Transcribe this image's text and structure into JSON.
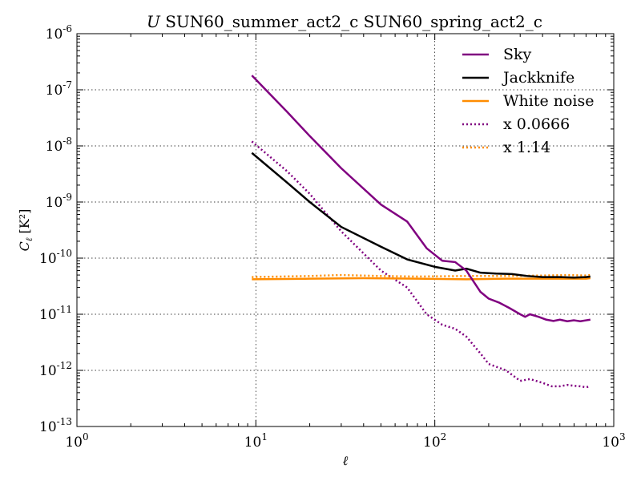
{
  "chart_data": {
    "type": "line",
    "title_italic_prefix": "U",
    "title": "SUN60_summer_act2_c SUN60_spring_act2_c",
    "xlabel": "ℓ",
    "ylabel_main": "C",
    "ylabel_sub": "ℓ",
    "ylabel_unit": "[K²]",
    "x_scale": "log",
    "y_scale": "log",
    "xlim": [
      1,
      1000
    ],
    "ylim": [
      1e-13,
      1e-06
    ],
    "x_ticks": [
      {
        "value": 1,
        "base": "10",
        "exp": "0"
      },
      {
        "value": 10,
        "base": "10",
        "exp": "1"
      },
      {
        "value": 100,
        "base": "10",
        "exp": "2"
      },
      {
        "value": 1000,
        "base": "10",
        "exp": "3"
      }
    ],
    "y_ticks": [
      {
        "value": 1e-13,
        "base": "10",
        "exp": "-13"
      },
      {
        "value": 1e-12,
        "base": "10",
        "exp": "-12"
      },
      {
        "value": 1e-11,
        "base": "10",
        "exp": "-11"
      },
      {
        "value": 1e-10,
        "base": "10",
        "exp": "-10"
      },
      {
        "value": 1e-09,
        "base": "10",
        "exp": "-9"
      },
      {
        "value": 1e-08,
        "base": "10",
        "exp": "-8"
      },
      {
        "value": 1e-07,
        "base": "10",
        "exp": "-7"
      },
      {
        "value": 1e-06,
        "base": "10",
        "exp": "-6"
      }
    ],
    "grid": true,
    "legend_position": "top-right",
    "series": [
      {
        "name": "Sky",
        "color": "#800080",
        "style": "solid",
        "points": [
          [
            9.5,
            1.8e-07
          ],
          [
            15,
            4e-08
          ],
          [
            20,
            1.5e-08
          ],
          [
            30,
            4e-09
          ],
          [
            50,
            9e-10
          ],
          [
            70,
            4.5e-10
          ],
          [
            90,
            1.5e-10
          ],
          [
            110,
            9e-11
          ],
          [
            130,
            8.5e-11
          ],
          [
            150,
            6e-11
          ],
          [
            180,
            2.5e-11
          ],
          [
            200,
            1.9e-11
          ],
          [
            230,
            1.6e-11
          ],
          [
            260,
            1.3e-11
          ],
          [
            300,
            1e-11
          ],
          [
            320,
            9e-12
          ],
          [
            340,
            1e-11
          ],
          [
            380,
            9e-12
          ],
          [
            420,
            8e-12
          ],
          [
            460,
            7.6e-12
          ],
          [
            500,
            8e-12
          ],
          [
            550,
            7.5e-12
          ],
          [
            600,
            7.8e-12
          ],
          [
            650,
            7.5e-12
          ],
          [
            700,
            7.8e-12
          ],
          [
            740,
            8e-12
          ]
        ]
      },
      {
        "name": "Jackknife",
        "color": "#000000",
        "style": "solid",
        "points": [
          [
            9.5,
            7.5e-09
          ],
          [
            15,
            2.2e-09
          ],
          [
            20,
            1e-09
          ],
          [
            30,
            3.6e-10
          ],
          [
            50,
            1.6e-10
          ],
          [
            70,
            9.5e-11
          ],
          [
            100,
            7e-11
          ],
          [
            130,
            6e-11
          ],
          [
            150,
            6.5e-11
          ],
          [
            180,
            5.5e-11
          ],
          [
            220,
            5.3e-11
          ],
          [
            270,
            5.2e-11
          ],
          [
            330,
            4.8e-11
          ],
          [
            400,
            4.6e-11
          ],
          [
            500,
            4.6e-11
          ],
          [
            600,
            4.5e-11
          ],
          [
            700,
            4.6e-11
          ],
          [
            740,
            4.7e-11
          ]
        ]
      },
      {
        "name": "White noise",
        "color": "#ff8c00",
        "style": "solid",
        "points": [
          [
            9.5,
            4.2e-11
          ],
          [
            20,
            4.3e-11
          ],
          [
            40,
            4.4e-11
          ],
          [
            80,
            4.3e-11
          ],
          [
            150,
            4.2e-11
          ],
          [
            250,
            4.3e-11
          ],
          [
            400,
            4.3e-11
          ],
          [
            550,
            4.3e-11
          ],
          [
            700,
            4.3e-11
          ],
          [
            740,
            4.4e-11
          ]
        ]
      },
      {
        "name": "x 0.0666",
        "color": "#800080",
        "style": "dotted",
        "points": [
          [
            9.5,
            1.2e-08
          ],
          [
            15,
            3.5e-09
          ],
          [
            20,
            1.4e-09
          ],
          [
            30,
            3e-10
          ],
          [
            50,
            6e-11
          ],
          [
            70,
            3e-11
          ],
          [
            90,
            1e-11
          ],
          [
            110,
            6.5e-12
          ],
          [
            130,
            5.5e-12
          ],
          [
            150,
            4e-12
          ],
          [
            180,
            2e-12
          ],
          [
            200,
            1.3e-12
          ],
          [
            250,
            1e-12
          ],
          [
            300,
            6.5e-13
          ],
          [
            340,
            7e-13
          ],
          [
            400,
            6e-13
          ],
          [
            450,
            5.2e-13
          ],
          [
            500,
            5.2e-13
          ],
          [
            550,
            5.5e-13
          ],
          [
            600,
            5.3e-13
          ],
          [
            650,
            5.2e-13
          ],
          [
            700,
            5e-13
          ],
          [
            740,
            5.2e-13
          ]
        ]
      },
      {
        "name": "x 1.14",
        "color": "#ff8c00",
        "style": "dotted",
        "points": [
          [
            9.5,
            4.6e-11
          ],
          [
            20,
            4.8e-11
          ],
          [
            30,
            5e-11
          ],
          [
            50,
            4.8e-11
          ],
          [
            80,
            4.7e-11
          ],
          [
            150,
            4.8e-11
          ],
          [
            250,
            4.8e-11
          ],
          [
            400,
            4.9e-11
          ],
          [
            550,
            5e-11
          ],
          [
            700,
            4.9e-11
          ],
          [
            740,
            5e-11
          ]
        ]
      }
    ]
  }
}
